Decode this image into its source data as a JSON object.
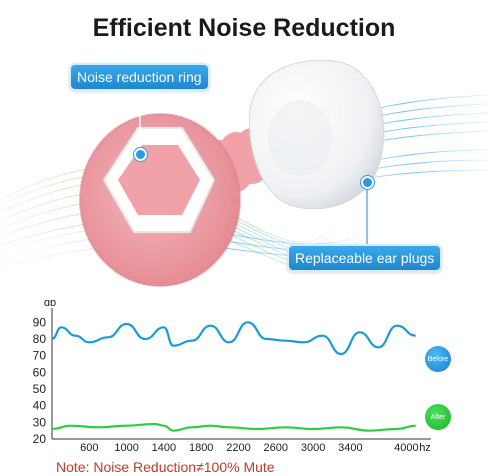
{
  "title": "Efficient Noise Reduction",
  "callouts": {
    "ring": "Noise reduction ring",
    "plugs": "Replaceable ear plugs"
  },
  "note": "Note: Noise Reduction≠100% Mute",
  "colors": {
    "callout": "#1e86d2",
    "before": "#1a9bd6",
    "after": "#2ecc40",
    "earplug_body": "#f2a0a6",
    "note": "#c0392b"
  },
  "chart_data": {
    "type": "line",
    "ylabel": "db",
    "xunit": "hz",
    "x_ticks": [
      600,
      1000,
      1400,
      1800,
      2200,
      2600,
      3000,
      3400,
      4000
    ],
    "y_ticks": [
      20,
      30,
      40,
      50,
      60,
      70,
      80,
      90
    ],
    "ylim": [
      20,
      95
    ],
    "xlim": [
      200,
      4200
    ],
    "grid": false,
    "series": [
      {
        "name": "Before",
        "x": [
          200,
          300,
          450,
          600,
          800,
          1000,
          1200,
          1400,
          1500,
          1700,
          1900,
          2100,
          2300,
          2500,
          2700,
          2900,
          3100,
          3300,
          3500,
          3700,
          3900,
          4100
        ],
        "y": [
          80,
          87,
          82,
          78,
          81,
          89,
          80,
          87,
          76,
          79,
          88,
          78,
          90,
          80,
          79,
          78,
          82,
          71,
          84,
          75,
          88,
          82
        ]
      },
      {
        "name": "After",
        "x": [
          200,
          400,
          700,
          1000,
          1300,
          1400,
          1500,
          1700,
          1900,
          2100,
          2400,
          2700,
          3000,
          3300,
          3600,
          3900,
          4100
        ],
        "y": [
          26,
          28,
          27,
          28,
          29,
          28,
          25,
          27,
          28,
          27,
          26,
          27,
          26,
          27,
          25,
          26,
          28
        ]
      }
    ]
  },
  "badges": {
    "before": "Before",
    "after": "After"
  }
}
